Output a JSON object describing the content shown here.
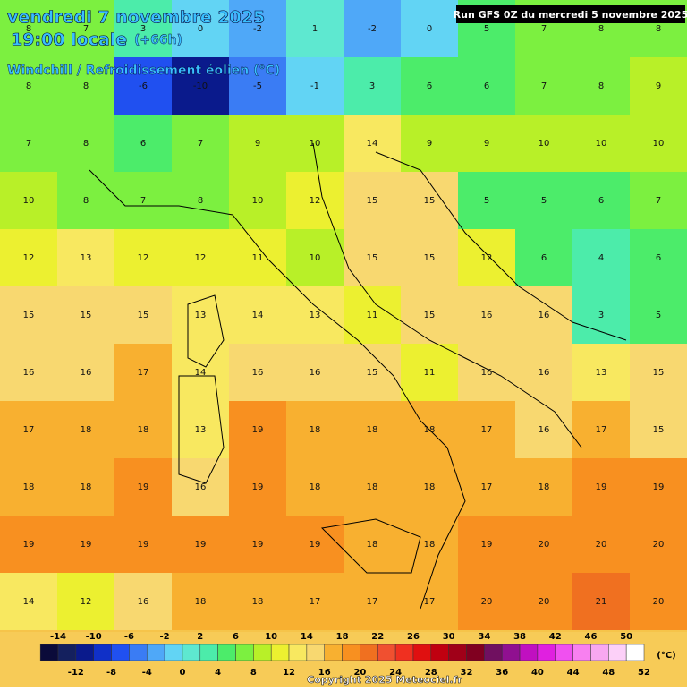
{
  "header": {
    "date": "vendredi 7 novembre 2025",
    "time": "19:00 locale",
    "offset": "(+66h)",
    "parameter": "Windchill / Refroidissement éolien (°C)",
    "run": "Run GFS 0Z du mercredi 5 novembre 2025"
  },
  "grid": {
    "rows": [
      [
        8,
        7,
        3,
        0,
        -2,
        1,
        -2,
        0,
        5,
        7,
        8,
        8
      ],
      [
        8,
        8,
        -6,
        -10,
        -5,
        -1,
        3,
        6,
        6,
        7,
        8,
        9
      ],
      [
        7,
        8,
        6,
        7,
        9,
        10,
        14,
        9,
        9,
        10,
        10,
        10
      ],
      [
        10,
        8,
        7,
        8,
        10,
        12,
        15,
        15,
        5,
        5,
        6,
        7
      ],
      [
        12,
        13,
        12,
        12,
        11,
        10,
        15,
        15,
        12,
        6,
        4,
        6
      ],
      [
        15,
        15,
        15,
        13,
        14,
        13,
        11,
        15,
        16,
        16,
        3,
        5
      ],
      [
        16,
        16,
        17,
        14,
        16,
        16,
        15,
        11,
        16,
        16,
        13,
        15
      ],
      [
        17,
        18,
        18,
        13,
        19,
        18,
        18,
        18,
        17,
        16,
        17,
        15
      ],
      [
        18,
        18,
        19,
        16,
        19,
        18,
        18,
        18,
        17,
        18,
        19,
        19
      ],
      [
        19,
        19,
        19,
        19,
        19,
        19,
        18,
        18,
        19,
        20,
        20,
        20
      ],
      [
        14,
        12,
        16,
        18,
        18,
        17,
        17,
        17,
        20,
        20,
        21,
        20
      ]
    ]
  },
  "legend": {
    "unit": "(°C)",
    "ticks": [
      -14,
      -12,
      -10,
      -8,
      -6,
      -4,
      -2,
      0,
      2,
      4,
      6,
      8,
      10,
      12,
      14,
      16,
      18,
      20,
      22,
      24,
      26,
      28,
      30,
      32,
      34,
      36,
      38,
      40,
      42,
      44,
      46,
      48,
      50,
      52
    ],
    "colors": [
      "#0b0b3a",
      "#14205e",
      "#0a1a8c",
      "#1030c8",
      "#2050f0",
      "#3a7cf4",
      "#4fa8f8",
      "#62d4f4",
      "#5ee8d0",
      "#4cecaa",
      "#4cec6a",
      "#7cf040",
      "#b8f028",
      "#ecf030",
      "#f8e860",
      "#f8d870",
      "#f8b030",
      "#f89020",
      "#f07020",
      "#f05030",
      "#f03020",
      "#e01010",
      "#c00010",
      "#a00018",
      "#800020",
      "#701060",
      "#901090",
      "#c010c0",
      "#e020e0",
      "#f050f0",
      "#f880f0",
      "#f8a8f0",
      "#fcd0f8",
      "#ffffff"
    ]
  },
  "footer": {
    "copyright": "Copyright 2025 Meteociel.fr"
  }
}
